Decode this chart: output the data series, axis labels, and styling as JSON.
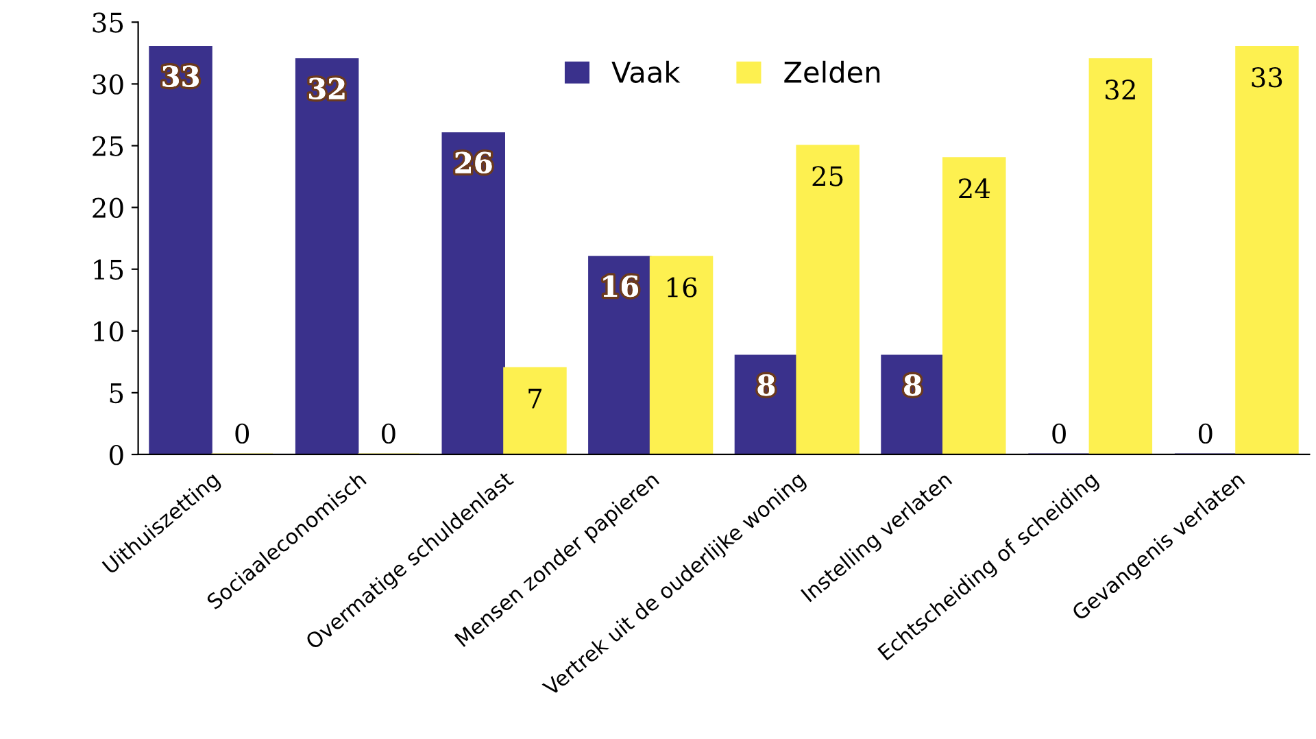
{
  "chart_data": {
    "type": "bar",
    "categories": [
      "Uithuiszetting",
      "Sociaaleconomisch",
      "Overmatige schuldenlast",
      "Mensen zonder papieren",
      "Vertrek uit de ouderlijke woning",
      "Instelling verlaten",
      "Echtscheiding of scheiding",
      "Gevangenis verlaten"
    ],
    "series": [
      {
        "name": "Vaak",
        "color": "#3a318c",
        "values": [
          33,
          32,
          26,
          16,
          8,
          8,
          0,
          0
        ]
      },
      {
        "name": "Zelden",
        "color": "#fdf050",
        "values": [
          0,
          0,
          7,
          16,
          25,
          24,
          32,
          33
        ]
      }
    ],
    "ylim": [
      0,
      35
    ],
    "yticks": [
      0,
      5,
      10,
      15,
      20,
      25,
      30,
      35
    ],
    "grid": false,
    "legend": "top",
    "data_labels": true
  }
}
